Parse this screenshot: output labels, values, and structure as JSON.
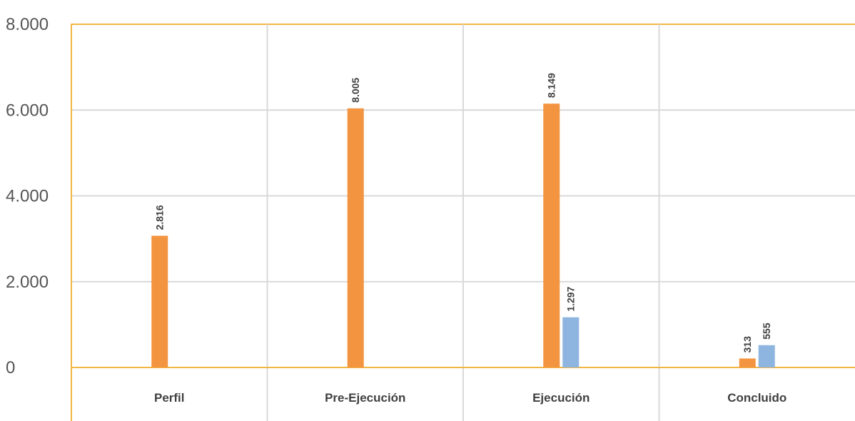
{
  "chart_data": {
    "type": "bar",
    "categories": [
      "Perfil",
      "Pre-Ejecución",
      "Ejecución",
      "Concluido"
    ],
    "y_ticks": [
      {
        "value": 0,
        "label": "0"
      },
      {
        "value": 2000,
        "label": "2.000"
      },
      {
        "value": 4000,
        "label": "4.000"
      },
      {
        "value": 6000,
        "label": "6.000"
      },
      {
        "value": 8000,
        "label": "8.000"
      }
    ],
    "ylim": [
      0,
      8000
    ],
    "grid": true,
    "series": [
      {
        "color": "#F39441",
        "values": [
          3070,
          6040,
          6150,
          210
        ],
        "labels": [
          "2.816",
          "8.005",
          "8.149",
          "313"
        ]
      },
      {
        "color": "#8DB5E0",
        "values": [
          null,
          null,
          1170,
          520
        ],
        "labels": [
          null,
          null,
          "1.297",
          "555"
        ]
      }
    ],
    "axis_color": "#F2B740",
    "grid_color": "#D9D9D9",
    "title": "",
    "xlabel": "",
    "ylabel": ""
  }
}
